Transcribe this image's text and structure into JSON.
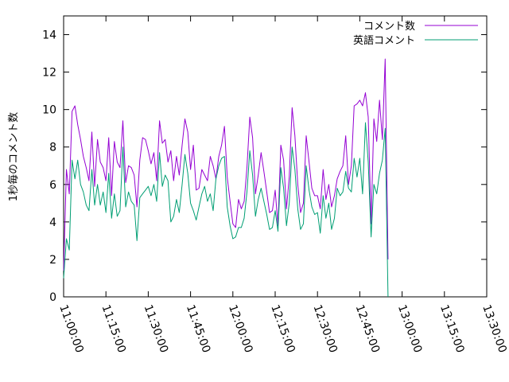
{
  "chart_data": {
    "type": "line",
    "ylabel": "1秒毎のコメント数",
    "xlabel": "",
    "ylim": [
      0,
      15
    ],
    "yticks": [
      0,
      2,
      4,
      6,
      8,
      10,
      12,
      14
    ],
    "xlim": [
      "11:00:00",
      "13:30:00"
    ],
    "xticks": [
      "11:00:00",
      "11:15:00",
      "11:30:00",
      "11:45:00",
      "12:00:00",
      "12:15:00",
      "12:30:00",
      "12:45:00",
      "13:00:00",
      "13:15:00",
      "13:30:00"
    ],
    "legend_position": "top-right",
    "grid": false,
    "series": [
      {
        "name": "コメント数",
        "color": "#9400d3",
        "points": [
          [
            "11:00:00",
            1.4
          ],
          [
            "11:01:00",
            6.8
          ],
          [
            "11:02:00",
            5.5
          ],
          [
            "11:03:00",
            9.9
          ],
          [
            "11:04:00",
            10.2
          ],
          [
            "11:05:00",
            9.2
          ],
          [
            "11:06:00",
            8.4
          ],
          [
            "11:07:00",
            7.5
          ],
          [
            "11:08:00",
            6.9
          ],
          [
            "11:09:00",
            6.2
          ],
          [
            "11:10:00",
            8.8
          ],
          [
            "11:11:00",
            5.9
          ],
          [
            "11:12:00",
            8.4
          ],
          [
            "11:13:00",
            7.2
          ],
          [
            "11:14:00",
            6.9
          ],
          [
            "11:15:00",
            6.2
          ],
          [
            "11:16:00",
            8.5
          ],
          [
            "11:17:00",
            5.4
          ],
          [
            "11:18:00",
            8.3
          ],
          [
            "11:19:00",
            7.2
          ],
          [
            "11:20:00",
            6.9
          ],
          [
            "11:21:00",
            9.4
          ],
          [
            "11:22:00",
            6.1
          ],
          [
            "11:23:00",
            7.0
          ],
          [
            "11:24:00",
            6.9
          ],
          [
            "11:25:00",
            6.5
          ],
          [
            "11:26:00",
            4.8
          ],
          [
            "11:27:00",
            7.3
          ],
          [
            "11:28:00",
            8.5
          ],
          [
            "11:29:00",
            8.4
          ],
          [
            "11:30:00",
            7.8
          ],
          [
            "11:31:00",
            7.1
          ],
          [
            "11:32:00",
            7.7
          ],
          [
            "11:33:00",
            6.2
          ],
          [
            "11:34:00",
            9.4
          ],
          [
            "11:35:00",
            8.2
          ],
          [
            "11:36:00",
            8.4
          ],
          [
            "11:37:00",
            7.2
          ],
          [
            "11:38:00",
            7.8
          ],
          [
            "11:39:00",
            6.2
          ],
          [
            "11:40:00",
            7.5
          ],
          [
            "11:41:00",
            6.5
          ],
          [
            "11:42:00",
            8.1
          ],
          [
            "11:43:00",
            9.5
          ],
          [
            "11:44:00",
            8.8
          ],
          [
            "11:45:00",
            6.8
          ],
          [
            "11:46:00",
            8.1
          ],
          [
            "11:47:00",
            5.7
          ],
          [
            "11:48:00",
            5.8
          ],
          [
            "11:49:00",
            6.8
          ],
          [
            "11:50:00",
            6.5
          ],
          [
            "11:51:00",
            6.2
          ],
          [
            "11:52:00",
            7.5
          ],
          [
            "11:53:00",
            7.0
          ],
          [
            "11:54:00",
            6.3
          ],
          [
            "11:55:00",
            7.5
          ],
          [
            "11:56:00",
            8.1
          ],
          [
            "11:57:00",
            9.1
          ],
          [
            "11:58:00",
            6.4
          ],
          [
            "11:59:00",
            5.1
          ],
          [
            "12:00:00",
            3.9
          ],
          [
            "12:01:00",
            3.7
          ],
          [
            "12:02:00",
            5.2
          ],
          [
            "12:03:00",
            4.7
          ],
          [
            "12:04:00",
            5.1
          ],
          [
            "12:05:00",
            6.9
          ],
          [
            "12:06:00",
            9.6
          ],
          [
            "12:07:00",
            8.5
          ],
          [
            "12:08:00",
            5.5
          ],
          [
            "12:09:00",
            6.5
          ],
          [
            "12:10:00",
            7.7
          ],
          [
            "12:11:00",
            6.7
          ],
          [
            "12:12:00",
            5.6
          ],
          [
            "12:13:00",
            4.5
          ],
          [
            "12:14:00",
            4.6
          ],
          [
            "12:15:00",
            5.7
          ],
          [
            "12:16:00",
            3.8
          ],
          [
            "12:17:00",
            8.1
          ],
          [
            "12:18:00",
            7.3
          ],
          [
            "12:19:00",
            4.7
          ],
          [
            "12:20:00",
            6.4
          ],
          [
            "12:21:00",
            10.1
          ],
          [
            "12:22:00",
            8.6
          ],
          [
            "12:23:00",
            6.0
          ],
          [
            "12:24:00",
            4.5
          ],
          [
            "12:25:00",
            5.0
          ],
          [
            "12:26:00",
            8.6
          ],
          [
            "12:27:00",
            7.2
          ],
          [
            "12:28:00",
            5.8
          ],
          [
            "12:29:00",
            5.4
          ],
          [
            "12:30:00",
            5.4
          ],
          [
            "12:31:00",
            4.7
          ],
          [
            "12:32:00",
            6.8
          ],
          [
            "12:33:00",
            5.2
          ],
          [
            "12:34:00",
            6.0
          ],
          [
            "12:35:00",
            4.8
          ],
          [
            "12:36:00",
            5.4
          ],
          [
            "12:37:00",
            6.3
          ],
          [
            "12:38:00",
            6.7
          ],
          [
            "12:39:00",
            7.0
          ],
          [
            "12:40:00",
            8.6
          ],
          [
            "12:41:00",
            6.0
          ],
          [
            "12:42:00",
            7.0
          ],
          [
            "12:43:00",
            10.2
          ],
          [
            "12:44:00",
            10.3
          ],
          [
            "12:45:00",
            10.5
          ],
          [
            "12:46:00",
            10.2
          ],
          [
            "12:47:00",
            10.9
          ],
          [
            "12:48:00",
            9.6
          ],
          [
            "12:49:00",
            3.9
          ],
          [
            "12:50:00",
            9.5
          ],
          [
            "12:51:00",
            8.3
          ],
          [
            "12:52:00",
            10.5
          ],
          [
            "12:53:00",
            8.4
          ],
          [
            "12:54:00",
            12.7
          ],
          [
            "12:55:00",
            2.0
          ]
        ]
      },
      {
        "name": "英語コメント",
        "color": "#009e73",
        "points": [
          [
            "11:00:00",
            1.0
          ],
          [
            "11:01:00",
            3.1
          ],
          [
            "11:02:00",
            2.5
          ],
          [
            "11:03:00",
            7.3
          ],
          [
            "11:04:00",
            6.3
          ],
          [
            "11:05:00",
            7.3
          ],
          [
            "11:06:00",
            6.0
          ],
          [
            "11:07:00",
            5.6
          ],
          [
            "11:08:00",
            4.9
          ],
          [
            "11:09:00",
            4.6
          ],
          [
            "11:10:00",
            6.8
          ],
          [
            "11:11:00",
            4.9
          ],
          [
            "11:12:00",
            6.0
          ],
          [
            "11:13:00",
            4.9
          ],
          [
            "11:14:00",
            5.6
          ],
          [
            "11:15:00",
            4.5
          ],
          [
            "11:16:00",
            6.6
          ],
          [
            "11:17:00",
            4.2
          ],
          [
            "11:18:00",
            5.5
          ],
          [
            "11:19:00",
            4.3
          ],
          [
            "11:20:00",
            4.6
          ],
          [
            "11:21:00",
            8.0
          ],
          [
            "11:22:00",
            4.8
          ],
          [
            "11:23:00",
            5.6
          ],
          [
            "11:24:00",
            5.1
          ],
          [
            "11:25:00",
            4.9
          ],
          [
            "11:26:00",
            3.0
          ],
          [
            "11:27:00",
            5.3
          ],
          [
            "11:28:00",
            5.5
          ],
          [
            "11:29:00",
            5.7
          ],
          [
            "11:30:00",
            5.9
          ],
          [
            "11:31:00",
            5.4
          ],
          [
            "11:32:00",
            6.0
          ],
          [
            "11:33:00",
            5.1
          ],
          [
            "11:34:00",
            7.7
          ],
          [
            "11:35:00",
            5.9
          ],
          [
            "11:36:00",
            6.5
          ],
          [
            "11:37:00",
            6.2
          ],
          [
            "11:38:00",
            4.0
          ],
          [
            "11:39:00",
            4.3
          ],
          [
            "11:40:00",
            5.2
          ],
          [
            "11:41:00",
            4.5
          ],
          [
            "11:42:00",
            6.0
          ],
          [
            "11:43:00",
            7.6
          ],
          [
            "11:44:00",
            6.6
          ],
          [
            "11:45:00",
            5.0
          ],
          [
            "11:46:00",
            4.6
          ],
          [
            "11:47:00",
            4.1
          ],
          [
            "11:48:00",
            4.8
          ],
          [
            "11:49:00",
            5.5
          ],
          [
            "11:50:00",
            5.9
          ],
          [
            "11:51:00",
            5.1
          ],
          [
            "11:52:00",
            5.5
          ],
          [
            "11:53:00",
            4.6
          ],
          [
            "11:54:00",
            6.3
          ],
          [
            "11:55:00",
            7.0
          ],
          [
            "11:56:00",
            7.4
          ],
          [
            "11:57:00",
            7.5
          ],
          [
            "11:58:00",
            4.8
          ],
          [
            "11:59:00",
            3.8
          ],
          [
            "12:00:00",
            3.1
          ],
          [
            "12:01:00",
            3.2
          ],
          [
            "12:02:00",
            3.7
          ],
          [
            "12:03:00",
            3.7
          ],
          [
            "12:04:00",
            4.2
          ],
          [
            "12:05:00",
            5.6
          ],
          [
            "12:06:00",
            7.8
          ],
          [
            "12:07:00",
            6.5
          ],
          [
            "12:08:00",
            4.3
          ],
          [
            "12:09:00",
            5.2
          ],
          [
            "12:10:00",
            5.8
          ],
          [
            "12:11:00",
            5.1
          ],
          [
            "12:12:00",
            4.4
          ],
          [
            "12:13:00",
            3.6
          ],
          [
            "12:14:00",
            3.7
          ],
          [
            "12:15:00",
            4.6
          ],
          [
            "12:16:00",
            3.5
          ],
          [
            "12:17:00",
            6.9
          ],
          [
            "12:18:00",
            5.8
          ],
          [
            "12:19:00",
            3.8
          ],
          [
            "12:20:00",
            5.0
          ],
          [
            "12:21:00",
            8.0
          ],
          [
            "12:22:00",
            6.8
          ],
          [
            "12:23:00",
            4.7
          ],
          [
            "12:24:00",
            3.6
          ],
          [
            "12:25:00",
            3.9
          ],
          [
            "12:26:00",
            7.0
          ],
          [
            "12:27:00",
            5.7
          ],
          [
            "12:28:00",
            4.8
          ],
          [
            "12:29:00",
            4.4
          ],
          [
            "12:30:00",
            4.5
          ],
          [
            "12:31:00",
            3.4
          ],
          [
            "12:32:00",
            5.4
          ],
          [
            "12:33:00",
            4.2
          ],
          [
            "12:34:00",
            5.0
          ],
          [
            "12:35:00",
            3.6
          ],
          [
            "12:36:00",
            4.2
          ],
          [
            "12:37:00",
            5.8
          ],
          [
            "12:38:00",
            5.4
          ],
          [
            "12:39:00",
            5.6
          ],
          [
            "12:40:00",
            6.7
          ],
          [
            "12:41:00",
            5.8
          ],
          [
            "12:42:00",
            5.6
          ],
          [
            "12:43:00",
            7.4
          ],
          [
            "12:44:00",
            6.4
          ],
          [
            "12:45:00",
            7.4
          ],
          [
            "12:46:00",
            5.5
          ],
          [
            "12:47:00",
            9.3
          ],
          [
            "12:48:00",
            7.2
          ],
          [
            "12:49:00",
            3.2
          ],
          [
            "12:50:00",
            6.0
          ],
          [
            "12:51:00",
            5.5
          ],
          [
            "12:52:00",
            6.6
          ],
          [
            "12:53:00",
            7.3
          ],
          [
            "12:54:00",
            9.0
          ],
          [
            "12:55:00",
            0.0
          ]
        ]
      }
    ]
  }
}
